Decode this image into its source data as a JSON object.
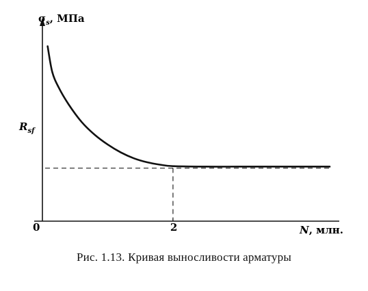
{
  "chart_data": {
    "type": "line",
    "ylabel": "σs, МПа",
    "ylabel_main": "σ",
    "ylabel_sub": "s",
    "ylabel_rest": ", МПа",
    "xlabel": "N, млн.",
    "xlabel_var": "N",
    "xlabel_rest": ", млн.",
    "origin_label": "0",
    "x_ticks": [
      {
        "value": 2,
        "label": "2"
      }
    ],
    "y_marker": {
      "label_main": "R",
      "label_sub": "sf",
      "value": 5.4
    },
    "ylim": [
      0,
      20
    ],
    "xlim": [
      0,
      4.4
    ],
    "grid": false,
    "series": [
      {
        "x": [
          0.08,
          0.15,
          0.25,
          0.4,
          0.6,
          0.8,
          1.0,
          1.2,
          1.4,
          1.6,
          1.8,
          2.0,
          2.5,
          3.0,
          3.5,
          4.0,
          4.4
        ],
        "values": [
          17.8,
          15.2,
          13.6,
          11.9,
          10.1,
          8.8,
          7.8,
          7.0,
          6.4,
          6.0,
          5.75,
          5.6,
          5.55,
          5.55,
          5.55,
          5.55,
          5.55
        ]
      }
    ]
  },
  "caption": "Рис. 1.13. Кривая выносливости арматуры"
}
